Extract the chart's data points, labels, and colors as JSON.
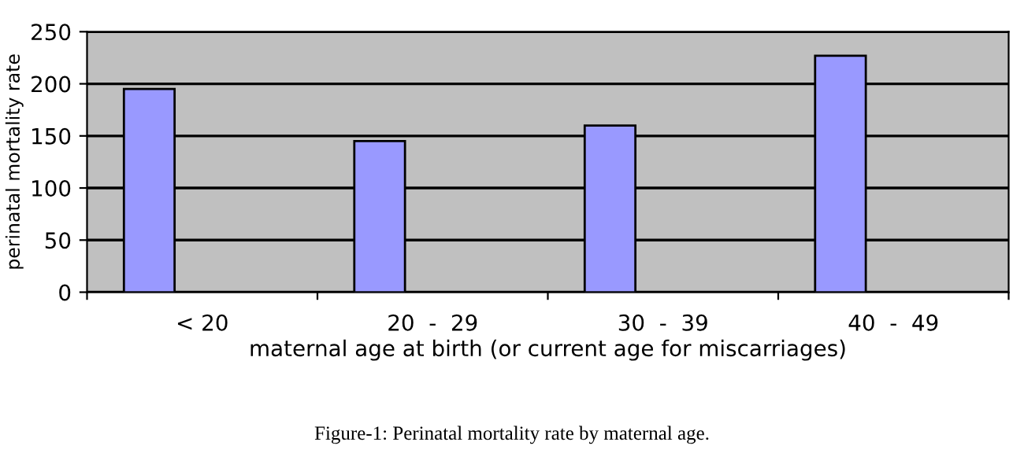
{
  "chart_data": {
    "type": "bar",
    "categories": [
      "< 20",
      "20  -  29",
      "30  -  39",
      "40  -  49"
    ],
    "values": [
      195,
      145,
      160,
      227
    ],
    "color": "#9999ff",
    "ylim": [
      0,
      250
    ],
    "yticks": [
      0,
      50,
      100,
      150,
      200,
      250
    ],
    "grid": "y",
    "xlabel": "maternal age at birth (or current age for miscarriages)",
    "ylabel": "perinatal mortality rate",
    "annotations": [
      "Figure-1: Perinatal mortality rate by maternal age."
    ]
  }
}
